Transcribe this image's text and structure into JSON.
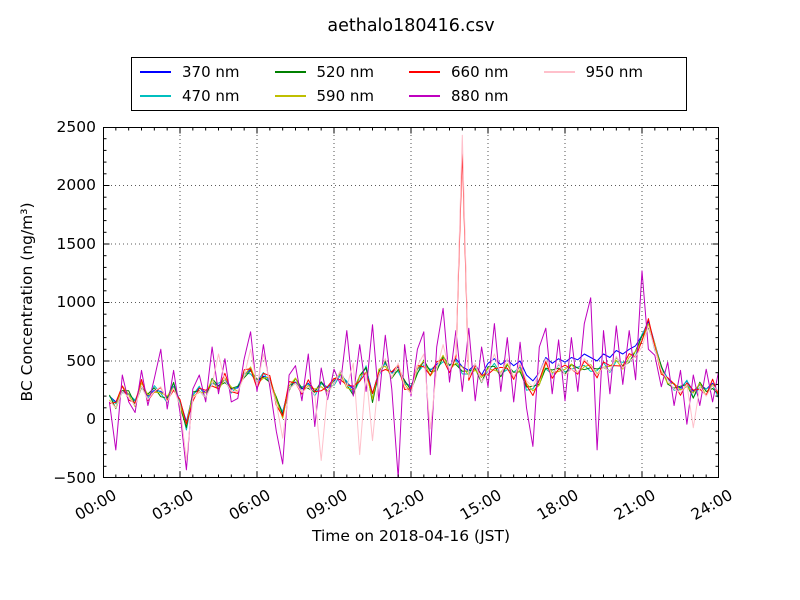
{
  "chart_data": {
    "type": "line",
    "title": "aethalo180416.csv",
    "xlabel": "Time on 2018-04-16 (JST)",
    "ylabel": "BC Concentration (ng/m³)",
    "xlim_hours": [
      0,
      24
    ],
    "ylim": [
      -500,
      2500
    ],
    "x_major_tick_hours": [
      0,
      3,
      6,
      9,
      12,
      15,
      18,
      21,
      24
    ],
    "x_ticklabels": [
      "00:00",
      "03:00",
      "06:00",
      "09:00",
      "12:00",
      "15:00",
      "18:00",
      "21:00",
      "24:00"
    ],
    "y_major_ticks": [
      -500,
      0,
      500,
      1000,
      1500,
      2000,
      2500
    ],
    "y_ticklabels": [
      "−500",
      "0",
      "500",
      "1000",
      "1500",
      "2000",
      "2500"
    ],
    "x_minor_step_hours": 0.5,
    "y_minor_step": 100,
    "grid": {
      "style": "dotted",
      "on": "major-both-axes"
    },
    "legend": {
      "position": "top-center",
      "rows": 2,
      "columns": 4
    },
    "x_start_hour": 0.25,
    "x_step_hours": 0.25,
    "base_values": [
      180,
      120,
      260,
      210,
      140,
      300,
      190,
      260,
      230,
      170,
      290,
      140,
      -60,
      200,
      260,
      210,
      320,
      280,
      350,
      250,
      260,
      390,
      420,
      310,
      380,
      340,
      160,
      40,
      280,
      330,
      250,
      300,
      230,
      290,
      260,
      320,
      380,
      300,
      240,
      350,
      430,
      180,
      400,
      470,
      380,
      440,
      300,
      260,
      420,
      480,
      400,
      450,
      520,
      440,
      500,
      420,
      380,
      450,
      340,
      420,
      450,
      400,
      450,
      380,
      440,
      280,
      250,
      320,
      460,
      390,
      440,
      420,
      450,
      420,
      460,
      440,
      400,
      470,
      430,
      500,
      460,
      520,
      560,
      700,
      820,
      620,
      430,
      330,
      280,
      250,
      310,
      210,
      290,
      230,
      300,
      200
    ],
    "series": [
      {
        "name": "370 nm",
        "color": "#0000ff",
        "values": [
          200,
          150,
          240,
          220,
          160,
          280,
          200,
          250,
          240,
          190,
          280,
          160,
          -20,
          210,
          270,
          230,
          310,
          290,
          340,
          260,
          270,
          380,
          430,
          320,
          370,
          350,
          180,
          60,
          290,
          320,
          260,
          310,
          240,
          320,
          270,
          330,
          390,
          320,
          260,
          370,
          440,
          220,
          410,
          480,
          400,
          450,
          320,
          280,
          430,
          490,
          420,
          470,
          540,
          460,
          520,
          450,
          420,
          470,
          380,
          480,
          520,
          470,
          510,
          460,
          500,
          380,
          330,
          400,
          530,
          480,
          520,
          490,
          530,
          510,
          560,
          530,
          500,
          560,
          530,
          590,
          560,
          600,
          630,
          720,
          840,
          650,
          450,
          350,
          300,
          270,
          330,
          240,
          300,
          260,
          310,
          230
        ]
      },
      {
        "name": "470 nm",
        "color": "#00bfbf",
        "derive_from": "base",
        "jitter_amp": 30,
        "jitter_phase": 0.7
      },
      {
        "name": "520 nm",
        "color": "#008000",
        "derive_from": "base",
        "jitter_amp": 35,
        "jitter_phase": 2.1
      },
      {
        "name": "590 nm",
        "color": "#bfbf00",
        "derive_from": "base",
        "jitter_amp": 30,
        "jitter_phase": 3.6
      },
      {
        "name": "660 nm",
        "color": "#ff0000",
        "derive_from": "base",
        "jitter_amp": 45,
        "jitter_phase": 5.0,
        "overrides": {
          "55": 2300
        }
      },
      {
        "name": "880 nm",
        "color": "#bf00bf",
        "values": [
          150,
          -260,
          380,
          150,
          60,
          420,
          120,
          350,
          600,
          90,
          420,
          60,
          -430,
          260,
          380,
          150,
          620,
          220,
          520,
          150,
          180,
          520,
          750,
          240,
          640,
          280,
          -100,
          -380,
          380,
          460,
          160,
          560,
          -60,
          440,
          170,
          430,
          300,
          760,
          200,
          640,
          240,
          810,
          160,
          720,
          260,
          -500,
          640,
          200,
          600,
          750,
          -300,
          620,
          950,
          320,
          760,
          240,
          780,
          160,
          620,
          280,
          820,
          240,
          700,
          150,
          660,
          100,
          -230,
          620,
          780,
          220,
          680,
          160,
          700,
          240,
          820,
          1040,
          -260,
          760,
          220,
          800,
          300,
          760,
          340,
          1270,
          600,
          550,
          280,
          490,
          120,
          420,
          -40,
          380,
          120,
          430,
          150,
          430
        ]
      },
      {
        "name": "950 nm",
        "color": "#ffc0cb",
        "values": [
          160,
          100,
          240,
          190,
          120,
          280,
          170,
          240,
          280,
          150,
          270,
          120,
          -350,
          180,
          240,
          190,
          300,
          560,
          330,
          240,
          240,
          370,
          600,
          290,
          560,
          320,
          140,
          -160,
          260,
          310,
          230,
          280,
          210,
          -350,
          240,
          300,
          420,
          280,
          480,
          -300,
          400,
          -180,
          380,
          520,
          360,
          480,
          280,
          220,
          460,
          560,
          -80,
          430,
          640,
          420,
          560,
          2430,
          360,
          480,
          320,
          400,
          560,
          380,
          520,
          360,
          480,
          330,
          280,
          400,
          520,
          370,
          480,
          380,
          430,
          400,
          520,
          460,
          380,
          450,
          410,
          540,
          440,
          500,
          540,
          620,
          800,
          600,
          420,
          340,
          260,
          230,
          300,
          -70,
          280,
          200,
          290,
          240
        ]
      }
    ]
  }
}
